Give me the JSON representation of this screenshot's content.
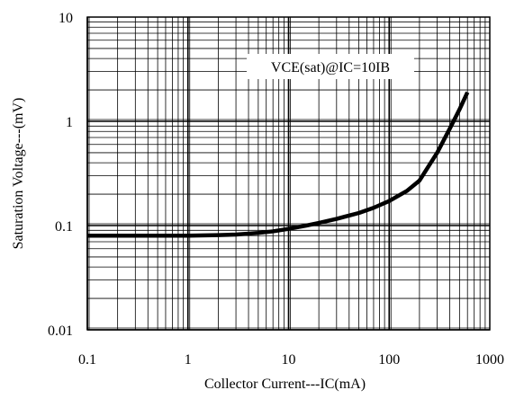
{
  "chart_data": {
    "type": "line",
    "title": "",
    "xlabel": "Collector Current---IC(mA)",
    "ylabel": "Saturation Voltage---(mV)",
    "x_scale": "log",
    "y_scale": "log",
    "xlim": [
      0.1,
      1000
    ],
    "ylim": [
      0.01,
      10
    ],
    "grid": true,
    "x_tick_labels": [
      "0.1",
      "1",
      "10",
      "100",
      "1000"
    ],
    "y_tick_labels": [
      "0.01",
      "0.1",
      "1",
      "10"
    ],
    "annotation": "VCE(sat)@IC=10IB",
    "series": [
      {
        "color": "#000000",
        "x": [
          0.1,
          0.2,
          0.5,
          1,
          2,
          3,
          5,
          7,
          10,
          15,
          20,
          30,
          50,
          70,
          100,
          150,
          200,
          300,
          400,
          500,
          600
        ],
        "y": [
          0.08,
          0.08,
          0.08,
          0.08,
          0.081,
          0.082,
          0.085,
          0.088,
          0.093,
          0.1,
          0.106,
          0.116,
          0.132,
          0.148,
          0.172,
          0.215,
          0.27,
          0.5,
          0.85,
          1.3,
          1.9
        ]
      }
    ]
  }
}
